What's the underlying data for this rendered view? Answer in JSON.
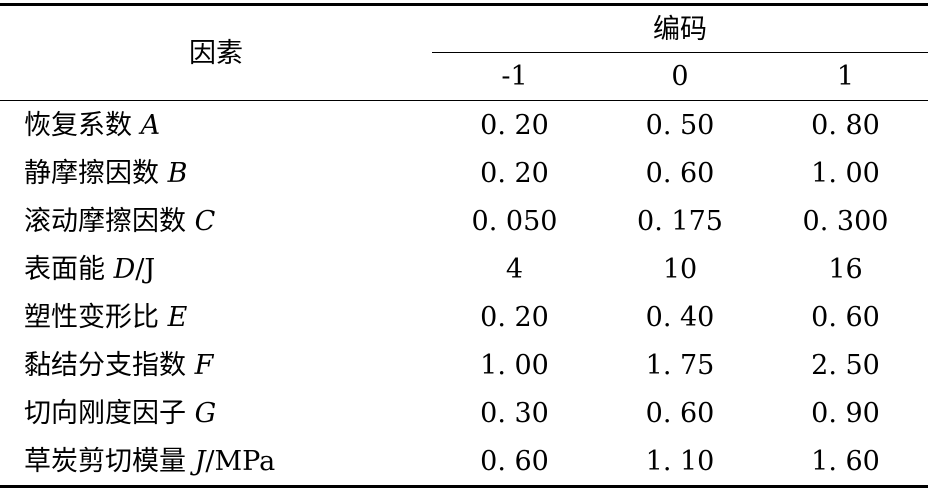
{
  "table": {
    "factor_header": "因素",
    "code_header": "编码",
    "levels": [
      "-1",
      "0",
      "1"
    ],
    "rows": [
      {
        "factor": "恢复系数",
        "symbol": "A",
        "unit": "",
        "values": [
          "0. 20",
          "0. 50",
          "0. 80"
        ]
      },
      {
        "factor": "静摩擦因数",
        "symbol": "B",
        "unit": "",
        "values": [
          "0. 20",
          "0. 60",
          "1. 00"
        ]
      },
      {
        "factor": "滚动摩擦因数",
        "symbol": "C",
        "unit": "",
        "values": [
          "0. 050",
          "0. 175",
          "0. 300"
        ]
      },
      {
        "factor": "表面能",
        "symbol": "D",
        "unit": "/J",
        "values": [
          "4",
          "10",
          "16"
        ]
      },
      {
        "factor": "塑性变形比",
        "symbol": "E",
        "unit": "",
        "values": [
          "0. 20",
          "0. 40",
          "0. 60"
        ]
      },
      {
        "factor": "黏结分支指数",
        "symbol": "F",
        "unit": "",
        "values": [
          "1. 00",
          "1. 75",
          "2. 50"
        ]
      },
      {
        "factor": "切向刚度因子",
        "symbol": "G",
        "unit": "",
        "values": [
          "0. 30",
          "0. 60",
          "0. 90"
        ]
      },
      {
        "factor": "草炭剪切模量",
        "symbol": "J",
        "unit": "/MPa",
        "values": [
          "0. 60",
          "1. 10",
          "1. 60"
        ]
      }
    ]
  }
}
